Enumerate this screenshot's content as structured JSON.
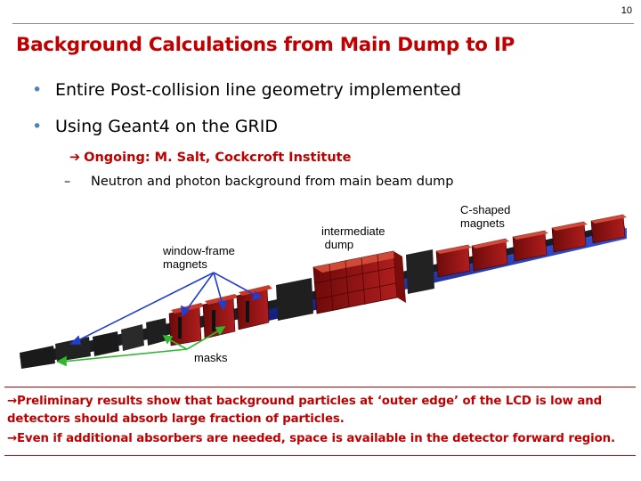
{
  "slide_number": "10",
  "title": "Background Calculations from Main Dump to IP",
  "bullets": [
    "Entire Post-collision line geometry implemented",
    "Using Geant4 on the GRID"
  ],
  "bullet_symbol": "•",
  "arrow_symbol": "➔",
  "ongoing": "Ongoing: M. Salt, Cockcroft Institute",
  "dash_symbol": "–",
  "sub_item": "Neutron and photon background from main beam dump",
  "figure": {
    "label_window_frame": "window-frame\nmagnets",
    "label_intermediate": "intermediate\n dump",
    "label_c_shaped": "C-shaped\nmagnets",
    "label_masks": "masks"
  },
  "results": {
    "arrow": "→",
    "line1": "Preliminary results show that background particles at ‘outer edge’ of the LCD is low and",
    "line1b": "detectors should absorb large fraction of particles.",
    "line2": "Even if additional absorbers are needed, space is available in the detector forward region."
  },
  "colors": {
    "title_red": "#c00000",
    "bullet_blue": "#4f81bd",
    "magnet_red": "#a01818",
    "beam_pipe_blue": "#1a2fa0",
    "callout_blue": "#1f3fd1",
    "callout_green": "#2fb82f"
  }
}
